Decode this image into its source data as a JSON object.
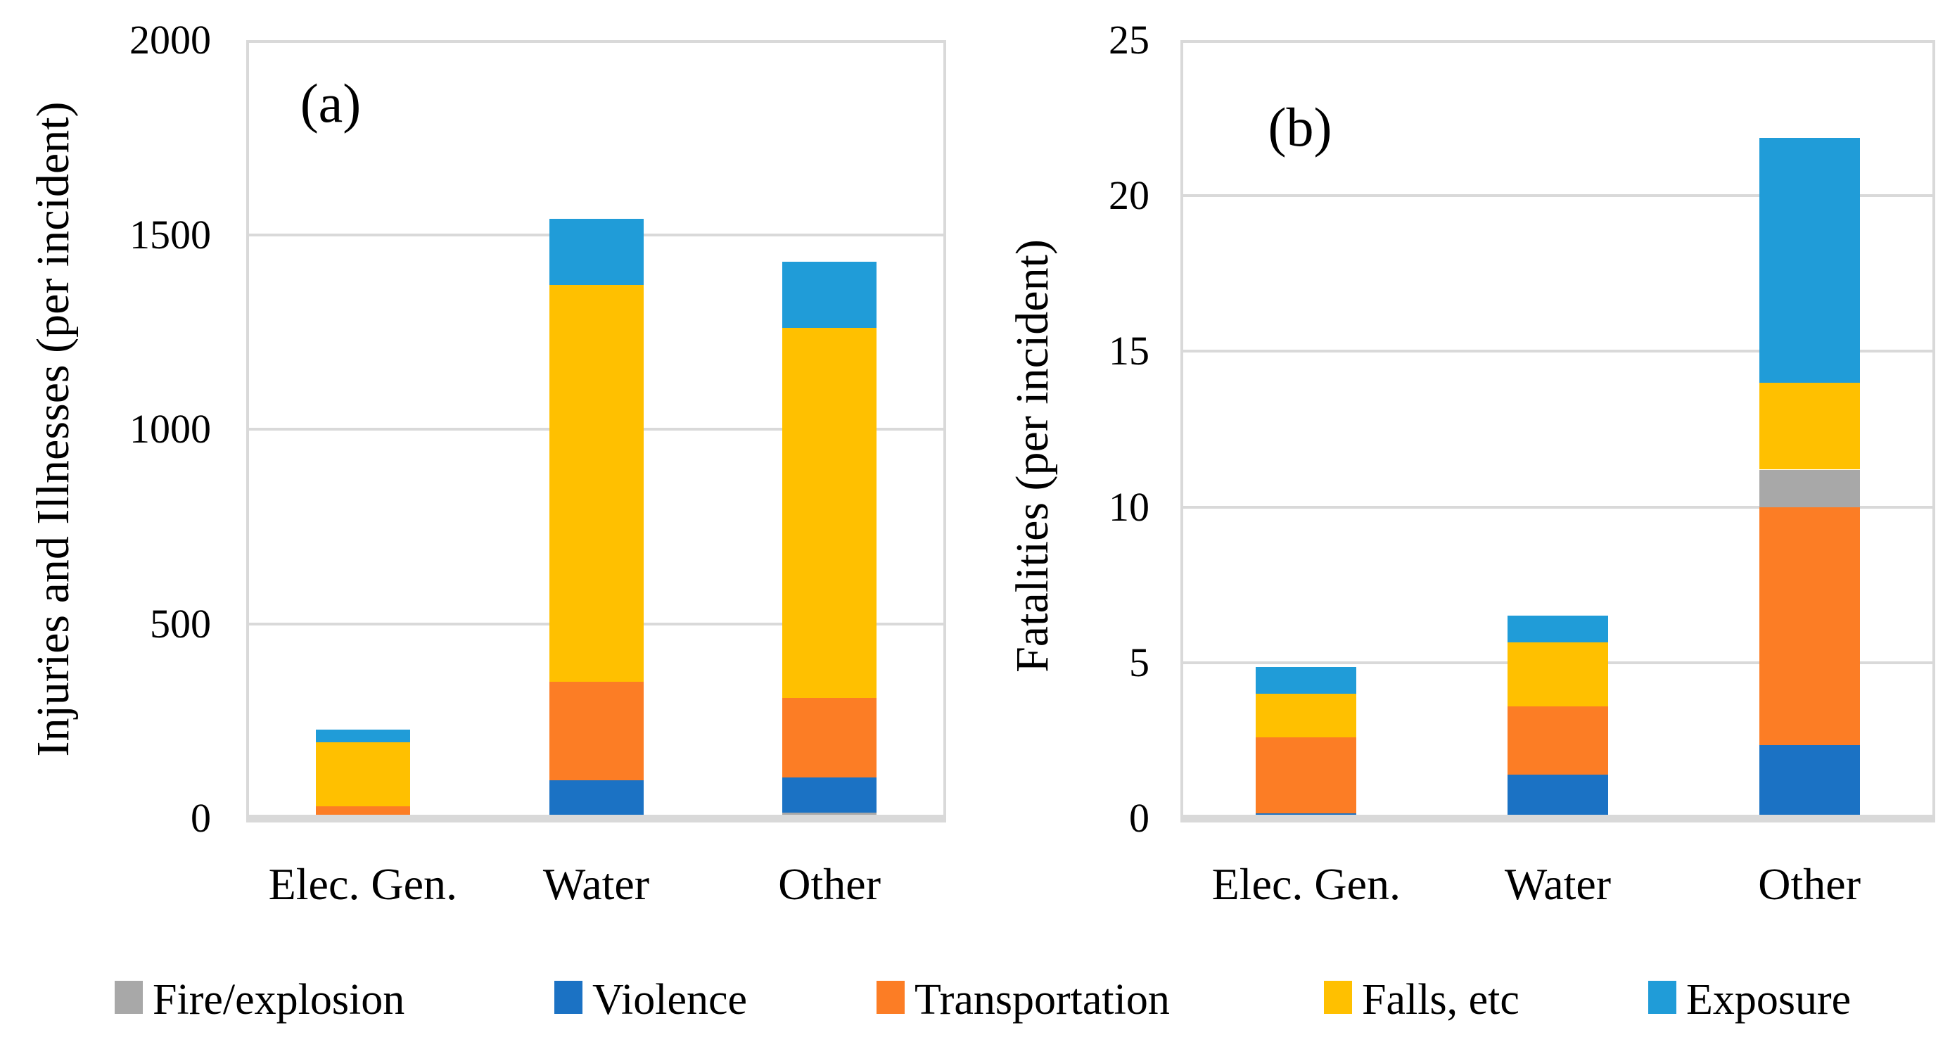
{
  "chart_data": [
    {
      "type": "bar",
      "stacked": true,
      "panel_label": "(a)",
      "y_axis_title": "Injuries and Illnesses (per incident)",
      "categories": [
        "Elec. Gen.",
        "Water",
        "Other"
      ],
      "ylim": [
        0,
        2000
      ],
      "y_tick_step": 500,
      "y_ticks": [
        "2000",
        "1500",
        "1000",
        "500",
        "0"
      ],
      "grid": true,
      "legend_position": "bottom-shared",
      "series": [
        {
          "name": "Fire/explosion",
          "values": [
            0,
            0,
            15
          ]
        },
        {
          "name": "Violence",
          "values": [
            0,
            98,
            90
          ]
        },
        {
          "name": "Transportation",
          "values": [
            30,
            252,
            205
          ]
        },
        {
          "name": "Falls, etc",
          "values": [
            165,
            1020,
            950
          ]
        },
        {
          "name": "Exposure",
          "values": [
            33,
            170,
            170
          ]
        }
      ],
      "stack_order": [
        "Fire/explosion",
        "Violence",
        "Transportation",
        "Falls, etc",
        "Exposure"
      ]
    },
    {
      "type": "bar",
      "stacked": true,
      "panel_label": "(b)",
      "y_axis_title": "Fatalities (per incident)",
      "categories": [
        "Elec. Gen.",
        "Water",
        "Other"
      ],
      "ylim": [
        0,
        25
      ],
      "y_tick_step": 5,
      "y_ticks": [
        "25",
        "20",
        "15",
        "10",
        "5",
        "0"
      ],
      "grid": true,
      "legend_position": "bottom-shared",
      "series": [
        {
          "name": "Fire/explosion",
          "values": [
            0,
            0,
            1.2
          ]
        },
        {
          "name": "Violence",
          "values": [
            0.15,
            1.4,
            2.35
          ]
        },
        {
          "name": "Transportation",
          "values": [
            2.45,
            2.2,
            7.65
          ]
        },
        {
          "name": "Falls, etc",
          "values": [
            1.4,
            2.05,
            2.8
          ]
        },
        {
          "name": "Exposure",
          "values": [
            0.85,
            0.85,
            7.85
          ]
        }
      ],
      "stack_order": [
        "Violence",
        "Transportation",
        "Fire/explosion",
        "Falls, etc",
        "Exposure"
      ]
    }
  ],
  "legend": [
    {
      "label": "Fire/explosion",
      "color": "#a8a8a8"
    },
    {
      "label": "Violence",
      "color": "#1b72c4"
    },
    {
      "label": "Transportation",
      "color": "#fc7d25"
    },
    {
      "label": "Falls, etc",
      "color": "#ffc000"
    },
    {
      "label": "Exposure",
      "color": "#209cd8"
    }
  ],
  "colors": {
    "grid": "#d9d9d9",
    "background": "#ffffff",
    "text": "#000000"
  }
}
